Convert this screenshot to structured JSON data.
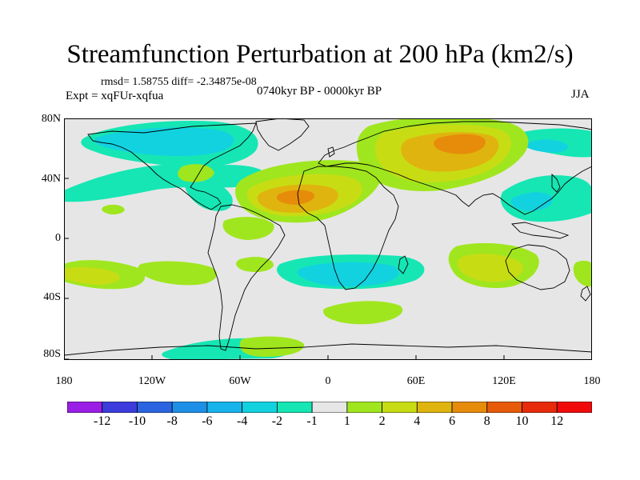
{
  "title": "Streamfunction Perturbation at 200 hPa (km2/s)",
  "stats": "rmsd= 1.58755 diff= -2.34875e-08",
  "experiment": "Expt = xqFUr-xqfua",
  "period": "0740kyr BP - 0000kyr BP",
  "season": "JJA",
  "axes": {
    "lat_labels": [
      "80N",
      "40N",
      "0",
      "40S",
      "80S"
    ],
    "lon_labels": [
      "180",
      "120W",
      "60W",
      "0",
      "60E",
      "120E",
      "180"
    ]
  },
  "colorbar": {
    "labels": [
      "-12",
      "-10",
      "-8",
      "-6",
      "-4",
      "-2",
      "-1",
      "1",
      "2",
      "4",
      "6",
      "8",
      "10",
      "12"
    ],
    "colors": [
      "#9a1ee6",
      "#3c3cdc",
      "#2a64e0",
      "#1e8fe6",
      "#16b4ea",
      "#12d2e0",
      "#16e6b4",
      "#e6e6e6",
      "#a0e61e",
      "#c8dc14",
      "#e0b40e",
      "#e68c0a",
      "#e65a0a",
      "#e62a0a",
      "#f00a0a"
    ]
  },
  "colors": {
    "ocean_bg": "#e6e6e6",
    "neg1": "#16e6b4",
    "neg2": "#12d2e0",
    "pos1": "#a0e61e",
    "pos2": "#c8dc14",
    "pos3": "#e0b40e",
    "pos4": "#e68c0a"
  }
}
